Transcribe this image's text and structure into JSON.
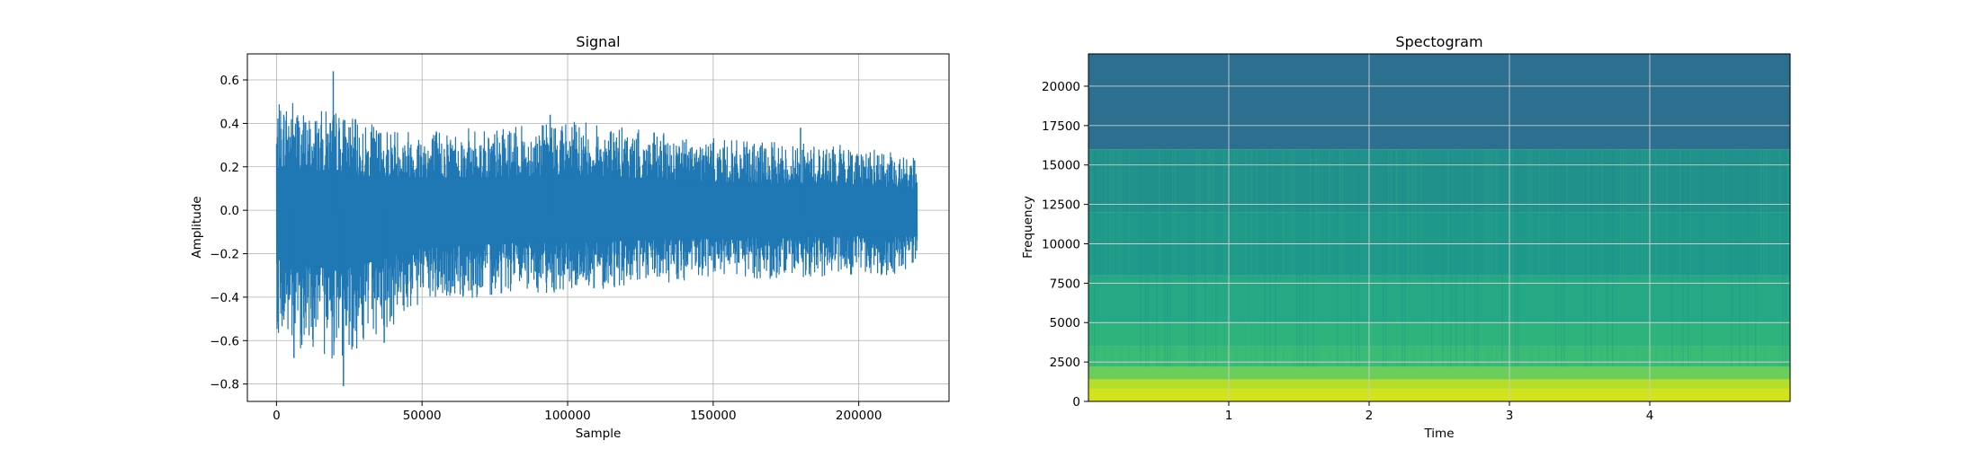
{
  "chart_data": [
    {
      "type": "line",
      "title": "Signal",
      "xlabel": "Sample",
      "ylabel": "Amplitude",
      "xlim": [
        -10000,
        231000
      ],
      "ylim": [
        -0.88,
        0.72
      ],
      "xticks": [
        0,
        50000,
        100000,
        150000,
        200000
      ],
      "xtick_labels": [
        "0",
        "50000",
        "100000",
        "150000",
        "200000"
      ],
      "yticks": [
        -0.8,
        -0.6,
        -0.4,
        -0.2,
        0.0,
        0.2,
        0.4,
        0.6
      ],
      "ytick_labels": [
        "−0.8",
        "−0.6",
        "−0.4",
        "−0.2",
        "0.0",
        "0.2",
        "0.4",
        "0.6"
      ],
      "grid": true,
      "color": "#1f77b4",
      "envelope": {
        "sample": [
          0,
          5000,
          10000,
          20000,
          30000,
          50000,
          80000,
          100000,
          130000,
          160000,
          200000,
          220000
        ],
        "max": [
          0.48,
          0.54,
          0.45,
          0.47,
          0.4,
          0.38,
          0.38,
          0.42,
          0.36,
          0.32,
          0.3,
          0.24
        ],
        "min": [
          -0.55,
          -0.68,
          -0.62,
          -0.7,
          -0.62,
          -0.44,
          -0.38,
          -0.38,
          -0.34,
          -0.32,
          -0.3,
          -0.3
        ]
      },
      "peaks": [
        {
          "sample": 19500,
          "amplitude": 0.64
        },
        {
          "sample": 23000,
          "amplitude": -0.81
        },
        {
          "sample": 6000,
          "amplitude": -0.68
        },
        {
          "sample": 37000,
          "amplitude": -0.61
        },
        {
          "sample": 94000,
          "amplitude": 0.44
        },
        {
          "sample": 180000,
          "amplitude": 0.38
        }
      ]
    },
    {
      "type": "heatmap",
      "title": "Spectogram",
      "xlabel": "Time",
      "ylabel": "Frequency",
      "xlim": [
        0,
        5.0
      ],
      "ylim": [
        0,
        22050
      ],
      "xticks": [
        1,
        2,
        3,
        4
      ],
      "xtick_labels": [
        "1",
        "2",
        "3",
        "4"
      ],
      "yticks": [
        0,
        2500,
        5000,
        7500,
        10000,
        12500,
        15000,
        17500,
        20000
      ],
      "ytick_labels": [
        "0",
        "2500",
        "5000",
        "7500",
        "10000",
        "12500",
        "15000",
        "17500",
        "20000"
      ],
      "grid": true,
      "colormap": "viridis",
      "frequency_bands": [
        {
          "from": 0,
          "to": 800,
          "color": "#d2e21b"
        },
        {
          "from": 800,
          "to": 1400,
          "color": "#b5de2b"
        },
        {
          "from": 1400,
          "to": 2200,
          "color": "#6ccd5a"
        },
        {
          "from": 2200,
          "to": 3500,
          "color": "#3bbb75"
        },
        {
          "from": 3500,
          "to": 5000,
          "color": "#2eb37c"
        },
        {
          "from": 5000,
          "to": 8000,
          "color": "#25a884"
        },
        {
          "from": 8000,
          "to": 12000,
          "color": "#1f9a8a"
        },
        {
          "from": 12000,
          "to": 16000,
          "color": "#21918c"
        },
        {
          "from": 16000,
          "to": 22050,
          "color": "#2d6f8e"
        }
      ]
    }
  ]
}
